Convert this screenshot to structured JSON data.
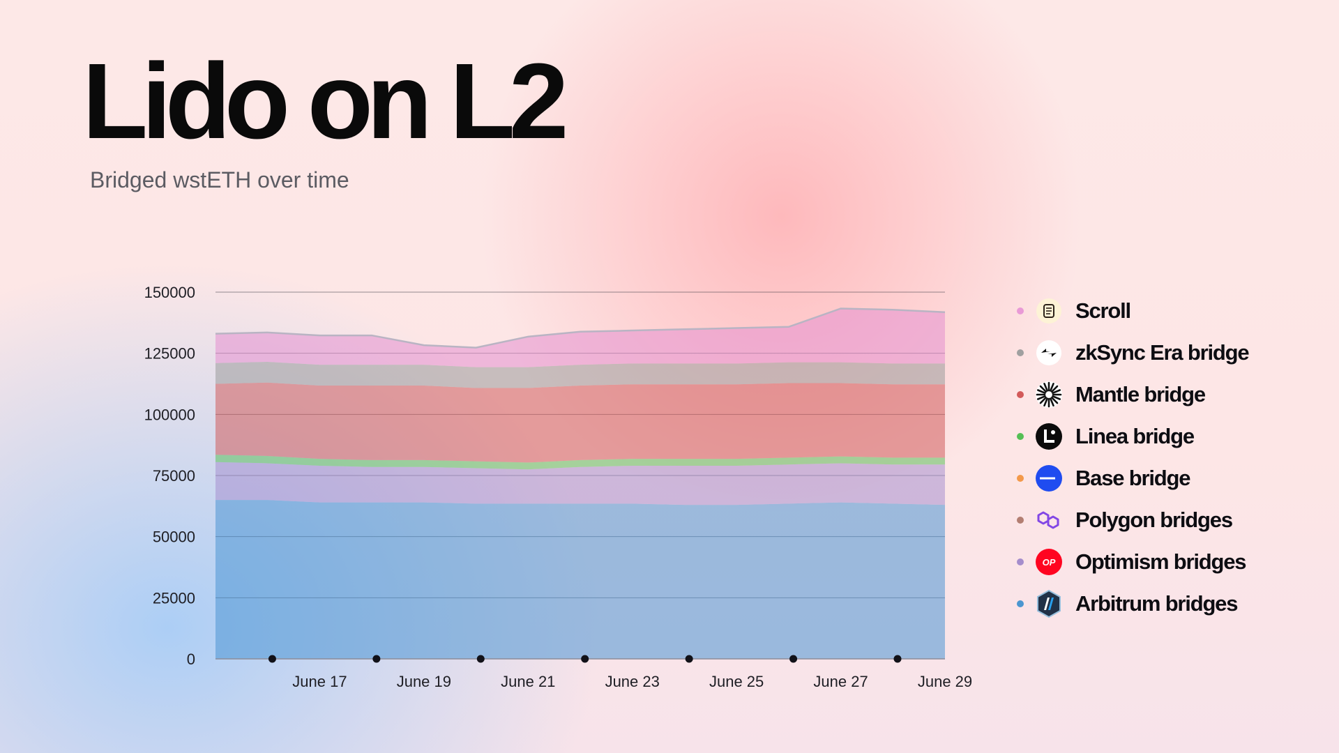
{
  "title": "Lido on L2",
  "subtitle": "Bridged wstETH over time",
  "chart_data": {
    "type": "area",
    "stacked": true,
    "x": [
      "June 15",
      "June 16",
      "June 17",
      "June 18",
      "June 19",
      "June 20",
      "June 21",
      "June 22",
      "June 23",
      "June 24",
      "June 25",
      "June 26",
      "June 27",
      "June 28",
      "June 29"
    ],
    "x_tick_labels": [
      "June 17",
      "June 19",
      "June 21",
      "June 23",
      "June 25",
      "June 27",
      "June 29"
    ],
    "y_ticks": [
      0,
      25000,
      50000,
      75000,
      100000,
      125000,
      150000
    ],
    "ylim": [
      0,
      150000
    ],
    "grid": true,
    "legend_position": "right",
    "series": [
      {
        "name": "Arbitrum bridges",
        "color": "#4c96d3",
        "values": [
          65000,
          65000,
          64000,
          64000,
          64000,
          63500,
          63500,
          63500,
          63500,
          63000,
          63000,
          63500,
          64000,
          63500,
          63000
        ]
      },
      {
        "name": "Optimism bridges",
        "color": "#a58fcf",
        "values": [
          15500,
          15000,
          15000,
          14500,
          14500,
          14500,
          14000,
          15000,
          15500,
          16000,
          16000,
          16000,
          16000,
          16000,
          16500
        ]
      },
      {
        "name": "Polygon bridges",
        "color": "#b17c70",
        "values": [
          0,
          0,
          0,
          0,
          0,
          0,
          0,
          0,
          0,
          0,
          0,
          0,
          0,
          0,
          0
        ]
      },
      {
        "name": "Base bridge",
        "color": "#f4994d",
        "values": [
          0,
          0,
          0,
          0,
          0,
          0,
          0,
          0,
          0,
          0,
          0,
          0,
          0,
          0,
          0
        ]
      },
      {
        "name": "Linea bridge",
        "color": "#5cc05c",
        "values": [
          3000,
          3000,
          2800,
          2800,
          2800,
          2800,
          2800,
          2800,
          2800,
          2800,
          2800,
          2800,
          2800,
          2800,
          2800
        ]
      },
      {
        "name": "Mantle bridge",
        "color": "#d05c5c",
        "values": [
          29000,
          30000,
          30000,
          30500,
          30500,
          30000,
          30500,
          30500,
          30500,
          30500,
          30500,
          30500,
          30000,
          30000,
          30000
        ]
      },
      {
        "name": "zkSync Era bridge",
        "color": "#9a9a9a",
        "values": [
          8500,
          8500,
          8500,
          8500,
          8500,
          8500,
          8500,
          8500,
          8500,
          8500,
          8500,
          8500,
          8500,
          8500,
          8500
        ]
      },
      {
        "name": "Scroll",
        "color": "#e48fd0",
        "values": [
          12000,
          12000,
          12000,
          12000,
          8000,
          8000,
          12500,
          13500,
          13500,
          14000,
          14500,
          14500,
          22000,
          22000,
          21000
        ]
      }
    ]
  },
  "legend": [
    {
      "label": "Scroll",
      "dot_color": "#e99ad6",
      "icon": "scroll-icon"
    },
    {
      "label": "zkSync Era bridge",
      "dot_color": "#a0a0a0",
      "icon": "zksync-icon"
    },
    {
      "label": "Mantle bridge",
      "dot_color": "#d25a5a",
      "icon": "mantle-icon"
    },
    {
      "label": "Linea bridge",
      "dot_color": "#55bf55",
      "icon": "linea-icon"
    },
    {
      "label": "Base bridge",
      "dot_color": "#f3994a",
      "icon": "base-icon"
    },
    {
      "label": "Polygon bridges",
      "dot_color": "#b37e72",
      "icon": "polygon-icon"
    },
    {
      "label": "Optimism bridges",
      "dot_color": "#a58dcc",
      "icon": "optimism-icon"
    },
    {
      "label": "Arbitrum bridges",
      "dot_color": "#4b96d0",
      "icon": "arbitrum-icon"
    }
  ]
}
